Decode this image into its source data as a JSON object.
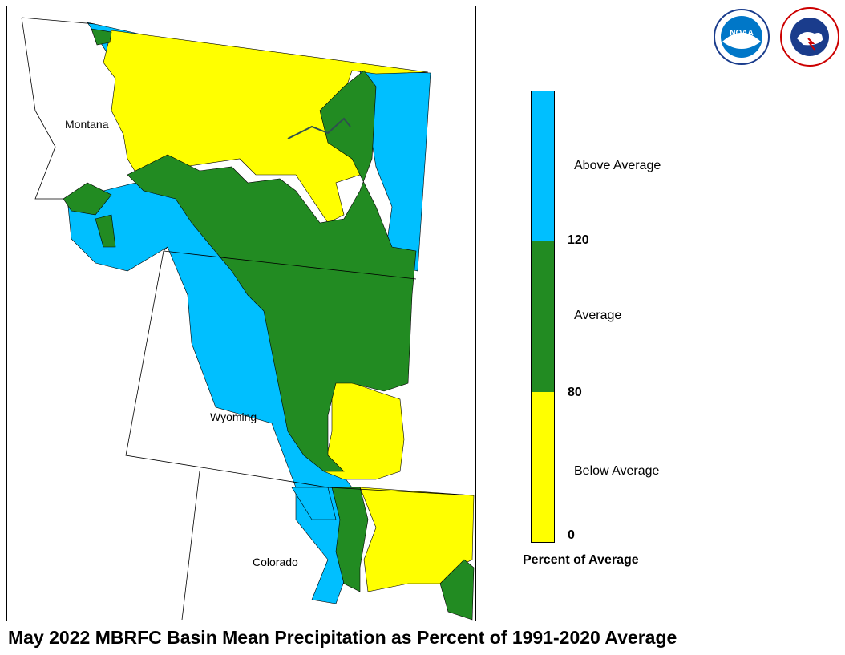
{
  "title": "May 2022 MBRFC Basin Mean Precipitation as Percent of 1991-2020 Average",
  "states": {
    "montana": "Montana",
    "wyoming": "Wyoming",
    "colorado": "Colorado"
  },
  "legend": {
    "title": "Percent of Average",
    "categories": [
      {
        "label": "Above Average",
        "color": "#00bfff"
      },
      {
        "label": "Average",
        "color": "#228b22"
      },
      {
        "label": "Below Average",
        "color": "#ffff00"
      }
    ],
    "ticks": [
      "120",
      "80",
      "0"
    ]
  },
  "logos": {
    "noaa": "NOAA",
    "nws": "NATIONAL WEATHER SERVICE"
  }
}
